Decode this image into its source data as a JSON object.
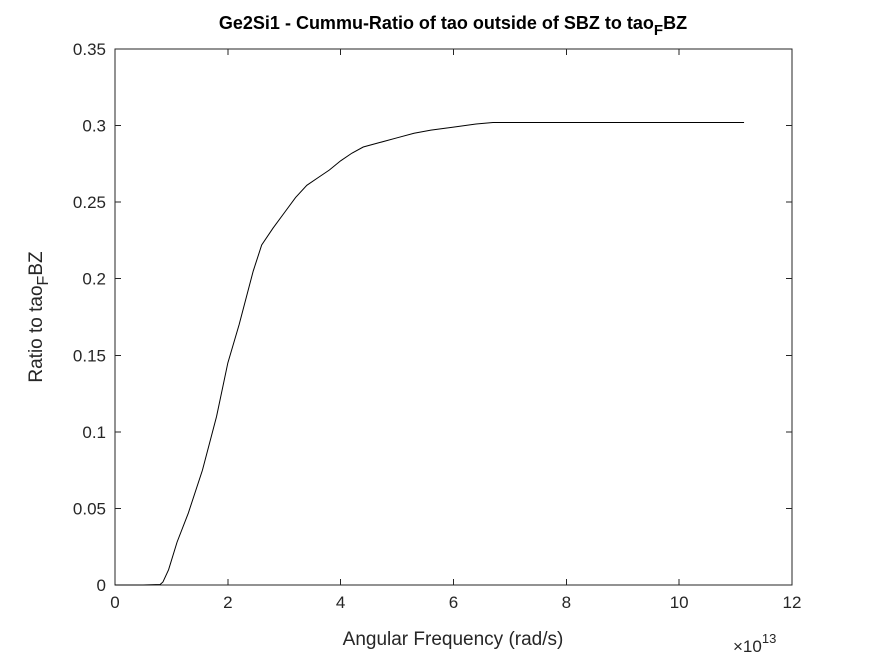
{
  "chart_data": {
    "type": "line",
    "title": {
      "main": "Ge2Si1 - Cummu-Ratio of tao outside of SBZ to tao",
      "subscript": "F",
      "tail": "BZ"
    },
    "xlabel": "Angular Frequency (rad/s)",
    "ylabel": {
      "main": "Ratio to tao",
      "subscript": "F",
      "tail": "BZ"
    },
    "x_exponent": {
      "prefix": "×10",
      "power": "13"
    },
    "xlim": [
      0,
      12
    ],
    "ylim": [
      0,
      0.35
    ],
    "x_ticks": [
      "0",
      "2",
      "4",
      "6",
      "8",
      "10",
      "12"
    ],
    "y_ticks": [
      "0",
      "0.05",
      "0.1",
      "0.15",
      "0.2",
      "0.25",
      "0.3",
      "0.35"
    ],
    "grid": false,
    "line_color": "#000000",
    "series": [
      {
        "x": [
          0,
          0.5,
          0.8,
          0.85,
          0.95,
          1.1,
          1.3,
          1.55,
          1.8,
          2.0,
          2.2,
          2.45,
          2.6,
          2.8,
          3.0,
          3.2,
          3.4,
          3.6,
          3.8,
          4.0,
          4.2,
          4.4,
          4.7,
          5.0,
          5.3,
          5.6,
          6.0,
          6.4,
          6.7,
          7.0,
          8.0,
          9.0,
          10.0,
          11.15
        ],
        "y": [
          0,
          0,
          0.0003,
          0.002,
          0.01,
          0.028,
          0.047,
          0.075,
          0.11,
          0.145,
          0.17,
          0.205,
          0.222,
          0.233,
          0.243,
          0.253,
          0.261,
          0.266,
          0.271,
          0.277,
          0.282,
          0.286,
          0.289,
          0.292,
          0.295,
          0.297,
          0.299,
          0.301,
          0.302,
          0.302,
          0.302,
          0.302,
          0.302,
          0.302
        ]
      }
    ]
  }
}
